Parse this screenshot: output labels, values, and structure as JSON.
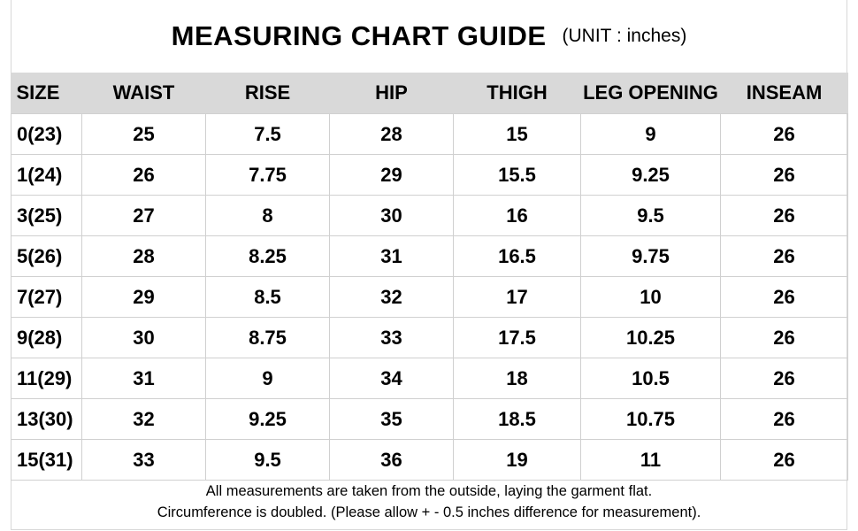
{
  "title": "MEASURING CHART GUIDE",
  "unit": "(UNIT : inches)",
  "columns": [
    "SIZE",
    "WAIST",
    "RISE",
    "HIP",
    "THIGH",
    "LEG OPENING",
    "INSEAM"
  ],
  "rows": [
    [
      "0(23)",
      "25",
      "7.5",
      "28",
      "15",
      "9",
      "26"
    ],
    [
      "1(24)",
      "26",
      "7.75",
      "29",
      "15.5",
      "9.25",
      "26"
    ],
    [
      "3(25)",
      "27",
      "8",
      "30",
      "16",
      "9.5",
      "26"
    ],
    [
      "5(26)",
      "28",
      "8.25",
      "31",
      "16.5",
      "9.75",
      "26"
    ],
    [
      "7(27)",
      "29",
      "8.5",
      "32",
      "17",
      "10",
      "26"
    ],
    [
      "9(28)",
      "30",
      "8.75",
      "33",
      "17.5",
      "10.25",
      "26"
    ],
    [
      "11(29)",
      "31",
      "9",
      "34",
      "18",
      "10.5",
      "26"
    ],
    [
      "13(30)",
      "32",
      "9.25",
      "35",
      "18.5",
      "10.75",
      "26"
    ],
    [
      "15(31)",
      "33",
      "9.5",
      "36",
      "19",
      "11",
      "26"
    ]
  ],
  "notes": [
    "All measurements are taken from the outside, laying the garment flat.",
    "Circumference is doubled. (Please allow + - 0.5 inches difference for measurement)."
  ],
  "colors": {
    "header_bg": "#d9d9d9",
    "grid": "#d0d0d0"
  }
}
